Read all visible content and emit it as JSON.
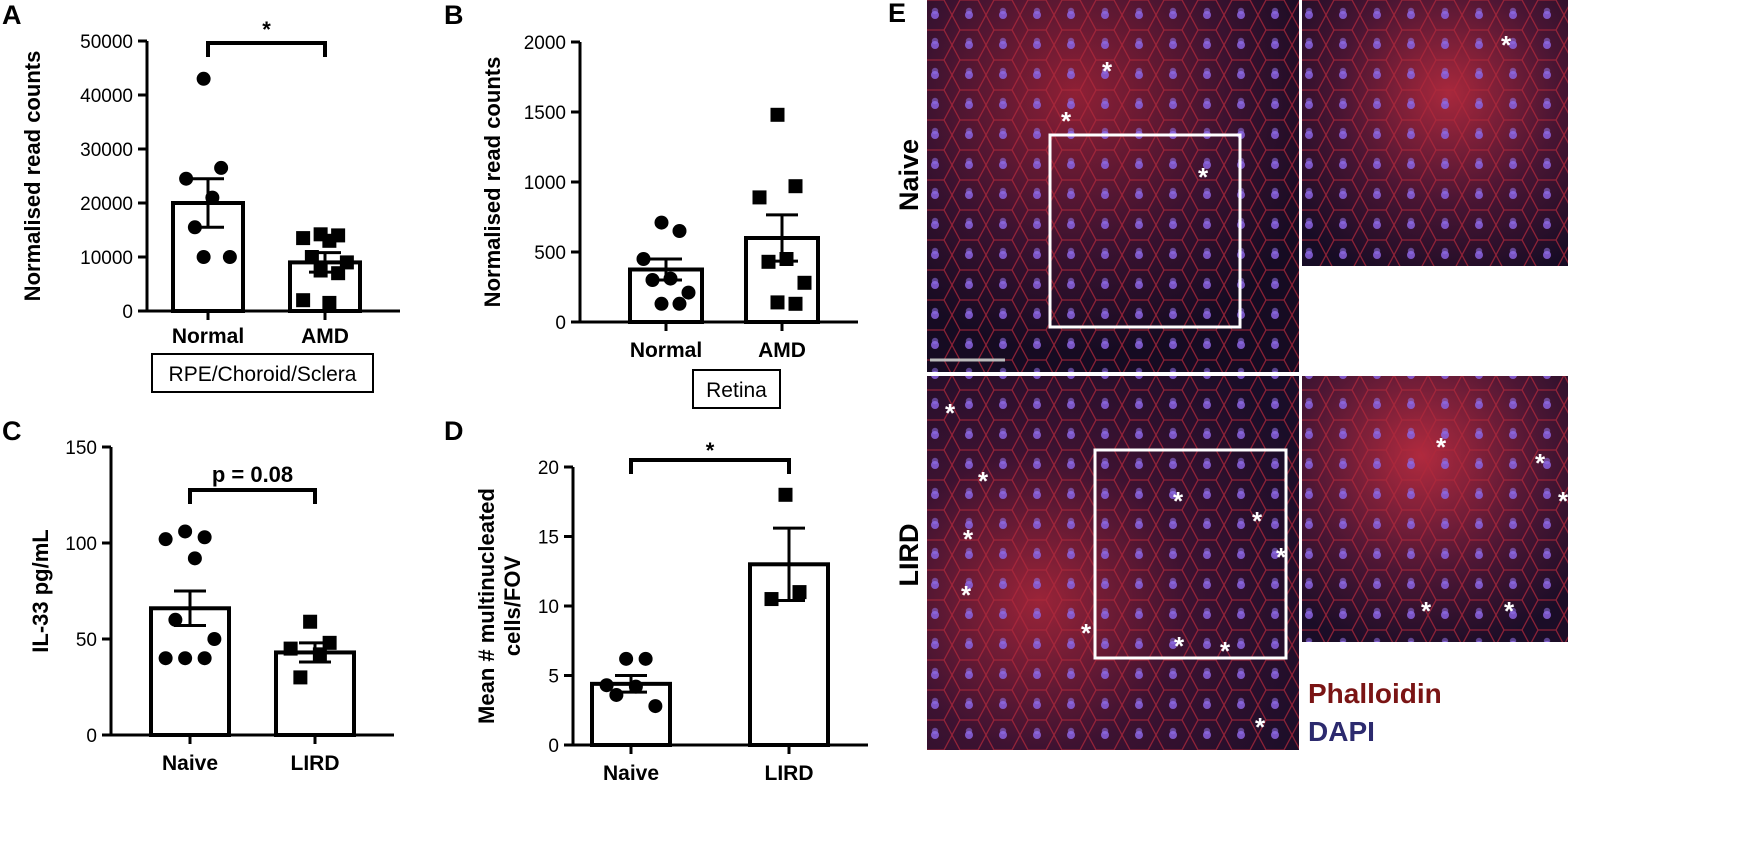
{
  "panels": {
    "A": "A",
    "B": "B",
    "C": "C",
    "D": "D",
    "E": "E"
  },
  "colors": {
    "phalloidin": "#7a1414",
    "dapi": "#2c2a6e",
    "tissue_red": "#8a1c2a",
    "tissue_dark": "#1a0f2a",
    "nuclei": "#7a55d8"
  },
  "chart_data": [
    {
      "panel": "A",
      "type": "bar",
      "categories": [
        "Normal",
        "AMD"
      ],
      "ylabel": "Normalised read counts",
      "group_label": "RPE/Choroid/Sclera",
      "ylim": [
        0,
        50000
      ],
      "yticks": [
        "0",
        "10000",
        "20000",
        "30000",
        "40000",
        "50000"
      ],
      "means": [
        20000,
        9000
      ],
      "sem": [
        4500,
        1800
      ],
      "points": [
        [
          43000,
          26500,
          24500,
          21000,
          15500,
          10000,
          10000
        ],
        [
          14200,
          14000,
          13500,
          13000,
          10000,
          9000,
          7500,
          7000,
          2000,
          1500
        ]
      ],
      "markers": [
        "circle",
        "square"
      ],
      "significance": "*"
    },
    {
      "panel": "B",
      "type": "bar",
      "categories": [
        "Normal",
        "AMD"
      ],
      "ylabel": "Normalised read counts",
      "group_label": "Retina",
      "ylim": [
        0,
        2000
      ],
      "yticks": [
        "0",
        "500",
        "1000",
        "1500",
        "2000"
      ],
      "means": [
        375,
        600
      ],
      "sem": [
        75,
        165
      ],
      "points": [
        [
          710,
          650,
          450,
          310,
          300,
          210,
          130,
          130
        ],
        [
          1480,
          970,
          890,
          450,
          430,
          280,
          140,
          130
        ]
      ],
      "markers": [
        "circle",
        "square"
      ],
      "significance": ""
    },
    {
      "panel": "C",
      "type": "bar",
      "categories": [
        "Naive",
        "LIRD"
      ],
      "ylabel": "IL-33 pg/mL",
      "group_label": "",
      "ylim": [
        0,
        150
      ],
      "yticks": [
        "0",
        "50",
        "100",
        "150"
      ],
      "means": [
        66,
        43
      ],
      "sem": [
        9,
        5
      ],
      "points": [
        [
          106,
          103,
          102,
          92,
          60,
          50,
          40,
          40,
          40
        ],
        [
          59,
          48,
          45,
          42,
          30
        ]
      ],
      "markers": [
        "circle",
        "square"
      ],
      "significance": "p = 0.08"
    },
    {
      "panel": "D",
      "type": "bar",
      "categories": [
        "Naive",
        "LIRD"
      ],
      "ylabel": "Mean # multinucleated cells/FOV",
      "group_label": "",
      "ylim": [
        0,
        20
      ],
      "yticks": [
        "0",
        "5",
        "10",
        "15",
        "20"
      ],
      "means": [
        4.4,
        13
      ],
      "sem": [
        0.6,
        2.6
      ],
      "points": [
        [
          6.2,
          6.2,
          4.3,
          4.2,
          3.6,
          2.8
        ],
        [
          18,
          11,
          10.5
        ]
      ],
      "markers": [
        "circle",
        "square"
      ],
      "significance": "*"
    }
  ],
  "micrographs": {
    "row_labels": [
      "Naive",
      "LIRD"
    ],
    "legend": [
      "Phalloidin",
      "DAPI"
    ],
    "asterisk": "*"
  }
}
